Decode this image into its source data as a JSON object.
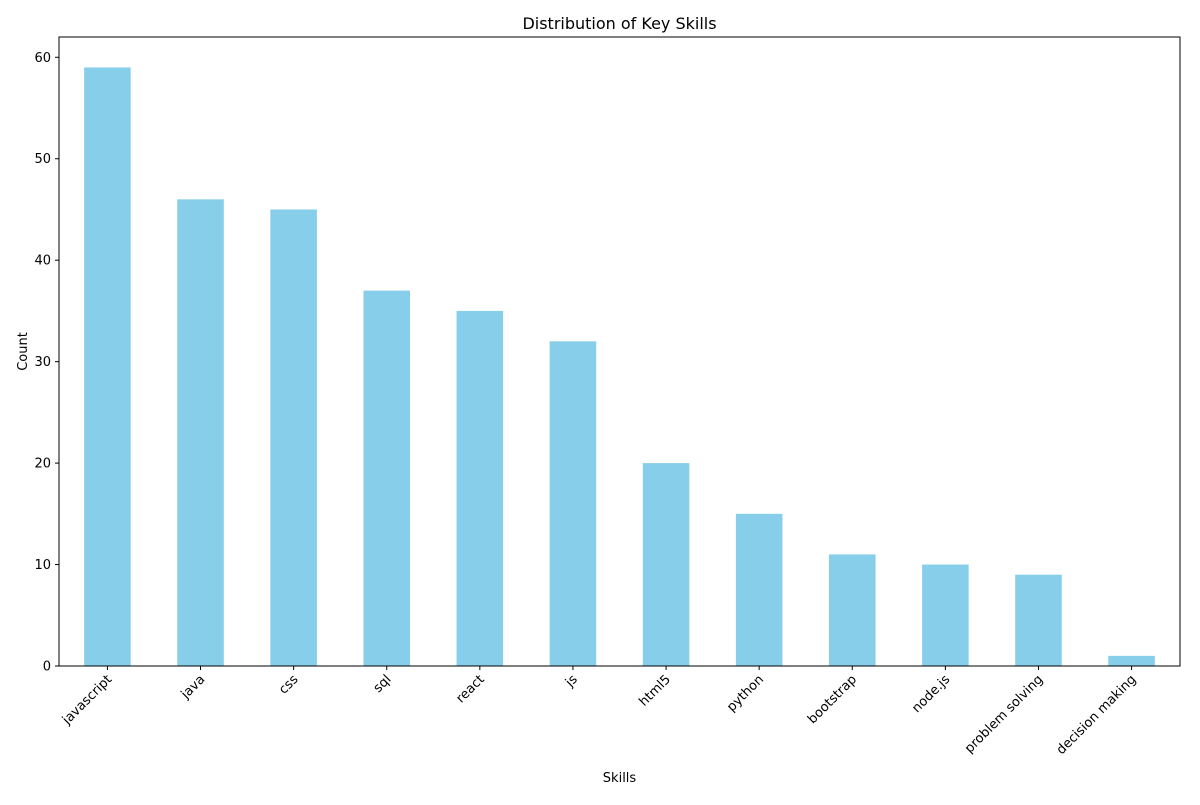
{
  "chart_data": {
    "type": "bar",
    "title": "Distribution of Key Skills",
    "xlabel": "Skills",
    "ylabel": "Count",
    "categories": [
      "javascript",
      "java",
      "css",
      "sql",
      "react",
      "js",
      "html5",
      "python",
      "bootstrap",
      "node.js",
      "problem solving",
      "decision making"
    ],
    "values": [
      59,
      46,
      45,
      37,
      35,
      32,
      20,
      15,
      11,
      10,
      9,
      1
    ],
    "ylim": [
      0,
      62
    ],
    "yticks": [
      0,
      10,
      20,
      30,
      40,
      50,
      60
    ],
    "bar_color": "#87ceeb",
    "grid": false,
    "legend": "none",
    "xtick_rotation_deg": 45
  }
}
